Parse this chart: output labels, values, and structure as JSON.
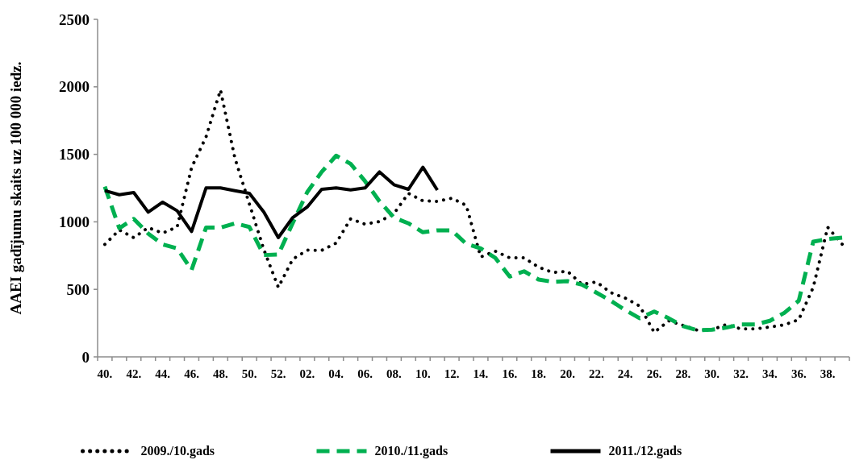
{
  "chart_data": {
    "type": "line",
    "ylabel": "AAEI gadījumu skaits uz 100 000 iedz.",
    "categories": [
      "40.",
      null,
      "42.",
      null,
      "44.",
      null,
      "46.",
      null,
      "48.",
      null,
      "50.",
      null,
      "52.",
      null,
      "02.",
      null,
      "04.",
      null,
      "06.",
      null,
      "08.",
      null,
      "10.",
      null,
      "12.",
      null,
      "14.",
      null,
      "16.",
      null,
      "18.",
      null,
      "20.",
      null,
      "22.",
      null,
      "24.",
      null,
      "26.",
      null,
      "28.",
      null,
      "30.",
      null,
      "32.",
      null,
      "34.",
      null,
      "36.",
      null,
      "38.",
      null
    ],
    "series": [
      {
        "name": "2009./10.gads",
        "color": "#000000",
        "line_style": "dotted",
        "values": [
          833,
          940,
          883,
          957,
          917,
          962,
          1402,
          1629,
          1977,
          1470,
          1132,
          794,
          515,
          724,
          790,
          789,
          843,
          1022,
          983,
          1002,
          1062,
          1211,
          1156,
          1152,
          1175,
          1122,
          740,
          783,
          734,
          734,
          664,
          625,
          634,
          537,
          555,
          476,
          435,
          376,
          181,
          267,
          233,
          197,
          201,
          240,
          207,
          207,
          221,
          237,
          276,
          515,
          960,
          835
        ]
      },
      {
        "name": "2010./11.gads",
        "color": "#00b050",
        "line_style": "dashed",
        "values": [
          1261,
          953,
          1022,
          913,
          833,
          803,
          644,
          957,
          957,
          989,
          962,
          754,
          758,
          992,
          1220,
          1370,
          1490,
          1430,
          1301,
          1152,
          1032,
          989,
          923,
          937,
          936,
          837,
          803,
          734,
          595,
          634,
          573,
          555,
          561,
          535,
          476,
          416,
          346,
          286,
          336,
          286,
          227,
          197,
          201,
          217,
          240,
          240,
          267,
          326,
          416,
          853,
          873,
          883
        ]
      },
      {
        "name": "2011./12.gads",
        "color": "#000000",
        "line_style": "solid",
        "values": [
          1231,
          1201,
          1217,
          1072,
          1146,
          1082,
          929,
          1251,
          1251,
          1231,
          1211,
          1072,
          883,
          1032,
          1110,
          1241,
          1251,
          1237,
          1251,
          1370,
          1275,
          1241,
          1404,
          1235,
          null,
          null,
          null,
          null,
          null,
          null,
          null,
          null,
          null,
          null,
          null,
          null,
          null,
          null,
          null,
          null,
          null,
          null,
          null,
          null,
          null,
          null,
          null,
          null,
          null,
          null,
          null,
          null
        ]
      }
    ],
    "ylim": [
      0,
      2500
    ],
    "yticks": [
      0,
      500,
      1000,
      1500,
      2000,
      2500
    ],
    "grid": false,
    "legend": "bottom",
    "marker": "none"
  }
}
